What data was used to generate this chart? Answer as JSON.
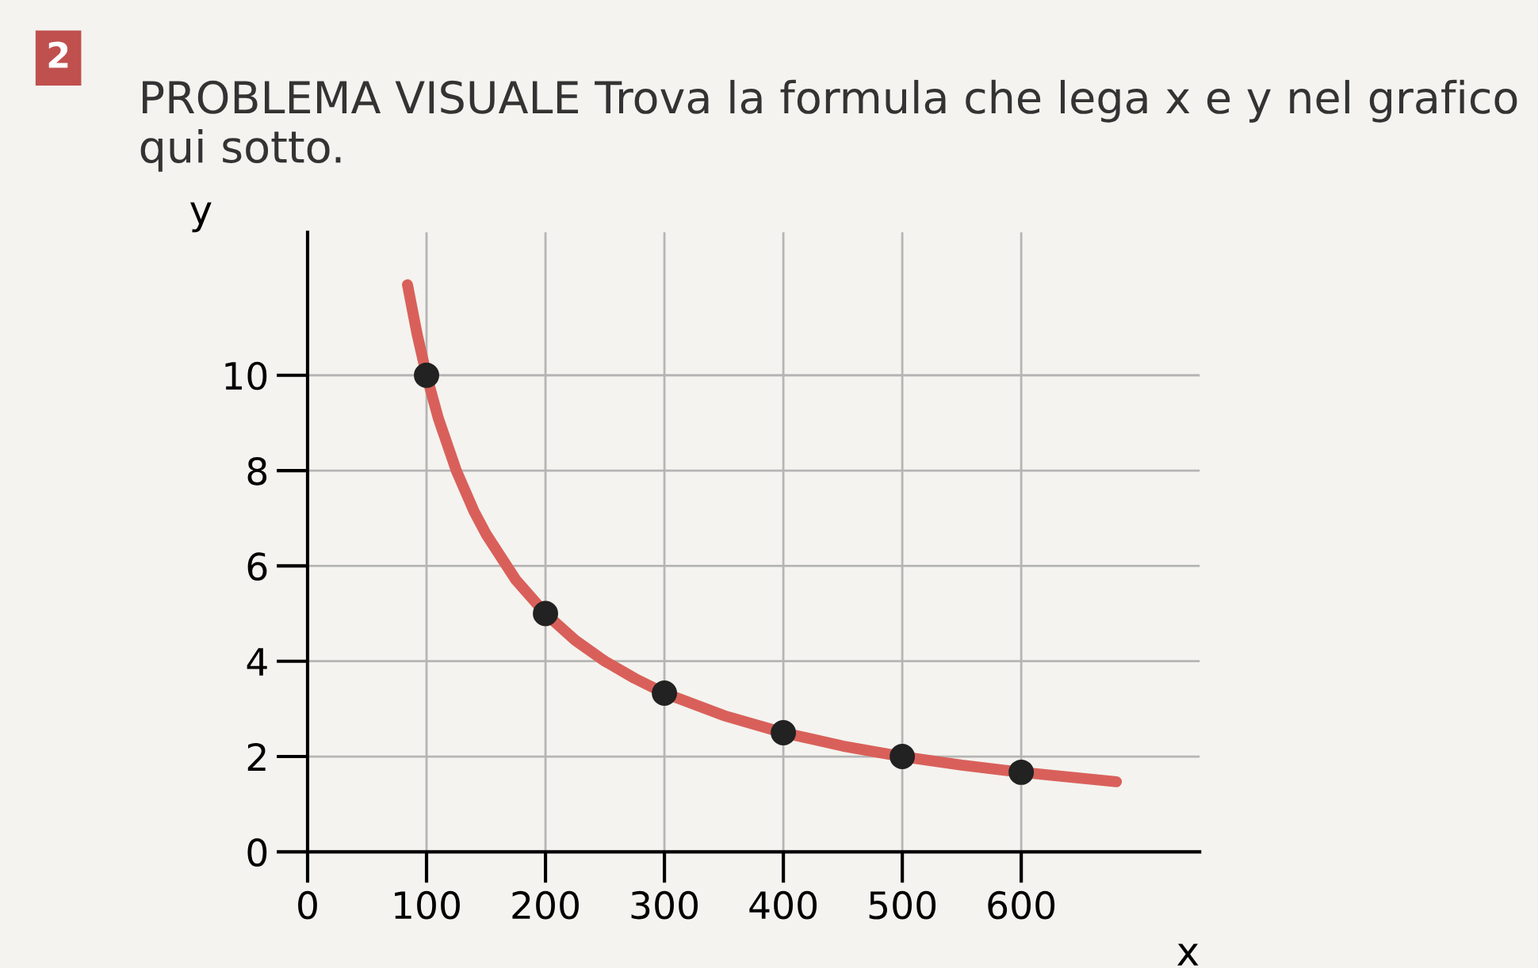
{
  "chart_data": {
    "type": "line",
    "title": "PROBLEMA VISUALE Trova la formula che lega x e y nel grafico qui sotto.",
    "annotations": [
      "2"
    ],
    "xlabel": "x",
    "ylabel": "y",
    "series": [
      {
        "color": "#d9605a",
        "marker": "none",
        "x": [
          84,
          92,
          100,
          110,
          125,
          140,
          150,
          175,
          200,
          225,
          250,
          275,
          300,
          350,
          400,
          450,
          500,
          550,
          600,
          680
        ],
        "values": [
          11.9,
          10.87,
          10,
          9.09,
          8,
          7.14,
          6.67,
          5.71,
          5,
          4.44,
          4,
          3.64,
          3.33,
          2.86,
          2.5,
          2.22,
          2,
          1.82,
          1.67,
          1.47
        ]
      },
      {
        "type": "scatter",
        "color": "#222222",
        "marker": "circle",
        "x": [
          100,
          200,
          300,
          400,
          500,
          600
        ],
        "values": [
          10,
          5,
          3.33,
          2.5,
          2,
          1.67
        ]
      }
    ],
    "xlim": [
      0,
      750
    ],
    "ylim": [
      0,
      13
    ],
    "xticks": [
      0,
      100,
      200,
      300,
      400,
      500,
      600
    ],
    "yticks": [
      0,
      2,
      4,
      6,
      8,
      10
    ],
    "grid": true
  }
}
